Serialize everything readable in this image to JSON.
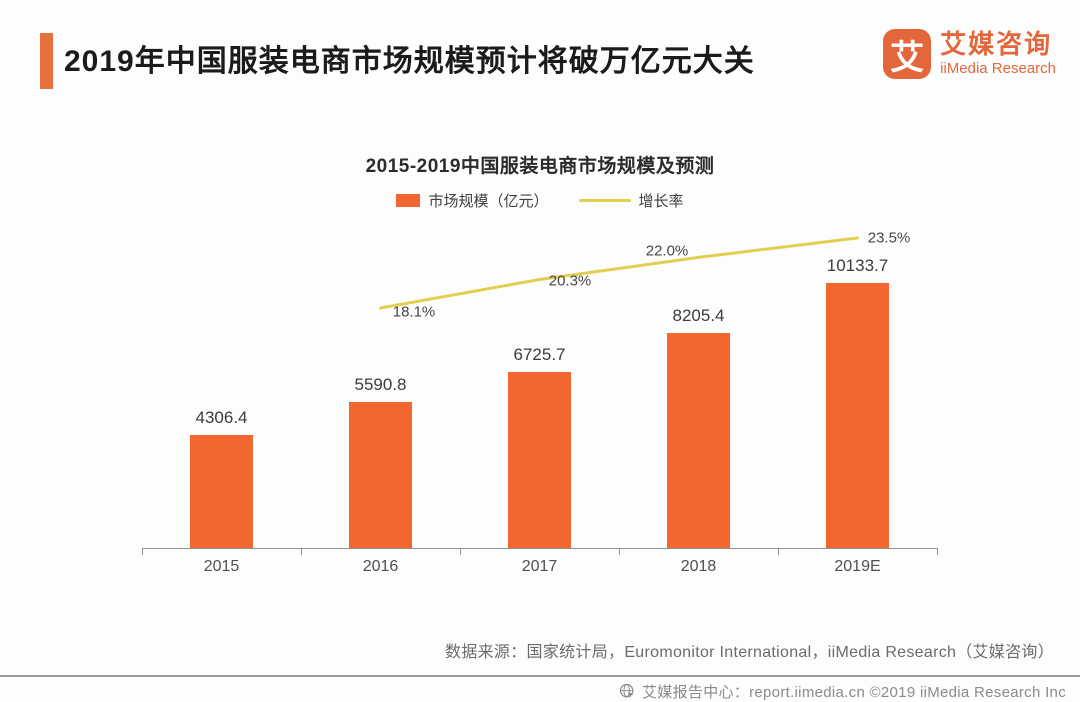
{
  "header": {
    "title": "2019年中国服装电商市场规模预计将破万亿元大关",
    "accent_color": "#E8703C",
    "logo": {
      "glyph": "艾",
      "name_cn": "艾媒咨询",
      "name_en": "iiMedia Research",
      "color": "#E4673B"
    }
  },
  "chart_data": {
    "type": "bar",
    "title": "2015-2019中国服装电商市场规模及预测",
    "categories": [
      "2015",
      "2016",
      "2017",
      "2018",
      "2019E"
    ],
    "series": [
      {
        "name": "市场规模（亿元）",
        "type": "bar",
        "color": "#F2662F",
        "values": [
          4306.4,
          5590.8,
          6725.7,
          8205.4,
          10133.7
        ],
        "labels": [
          "4306.4",
          "5590.8",
          "6725.7",
          "8205.4",
          "10133.7"
        ]
      },
      {
        "name": "增长率",
        "type": "line",
        "color": "#E3CF4F",
        "values": [
          null,
          18.1,
          20.3,
          22.0,
          23.5
        ],
        "labels": [
          "18.1%",
          "20.3%",
          "22.0%",
          "23.5%"
        ]
      }
    ],
    "legend_position": "top",
    "grid": false,
    "y_axis": {
      "visible": false,
      "min": 0
    },
    "x_axis": {
      "visible": true
    }
  },
  "source_note": "数据来源：国家统计局，Euromonitor International，iiMedia Research（艾媒咨询）",
  "footer": {
    "text": "艾媒报告中心：report.iimedia.cn ©2019 iiMedia Research Inc"
  }
}
